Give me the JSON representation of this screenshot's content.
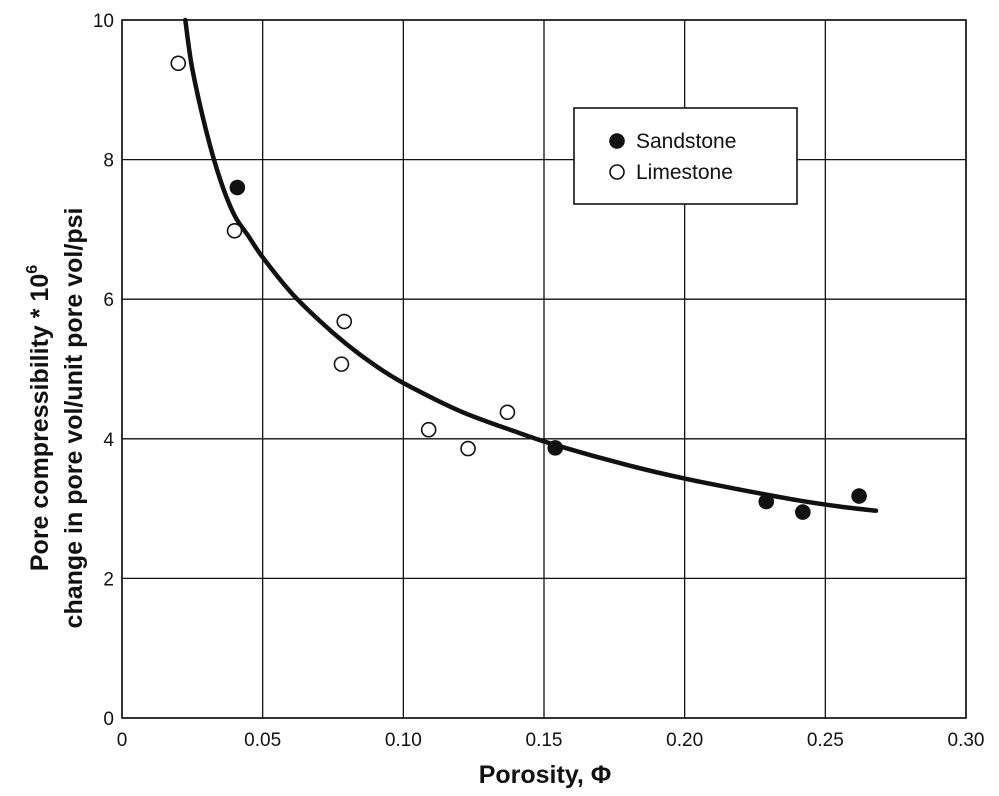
{
  "chart_data": {
    "type": "scatter",
    "xlabel": "Porosity, Φ",
    "ylabel_line1": "Pore compressibility * 10",
    "ylabel_sup": "6",
    "ylabel_line2": "change in pore vol/unit pore vol/psi",
    "xlim": [
      0,
      0.3
    ],
    "ylim": [
      0,
      10
    ],
    "x_ticks": [
      0,
      0.05,
      0.1,
      0.15,
      0.2,
      0.25,
      0.3
    ],
    "x_tick_labels": [
      "0",
      "0.05",
      "0.10",
      "0.15",
      "0.20",
      "0.25",
      "0.30"
    ],
    "y_ticks": [
      0,
      2,
      4,
      6,
      8,
      10
    ],
    "y_tick_labels": [
      "0",
      "2",
      "4",
      "6",
      "8",
      "10"
    ],
    "grid": true,
    "legend_position": "top-right",
    "series": [
      {
        "name": "Sandstone",
        "marker": "filled-circle",
        "color": "#111111",
        "x": [
          0.041,
          0.154,
          0.229,
          0.242,
          0.262
        ],
        "y": [
          7.6,
          3.87,
          3.1,
          2.95,
          3.18
        ]
      },
      {
        "name": "Limestone",
        "marker": "open-circle",
        "color": "#111111",
        "x": [
          0.02,
          0.04,
          0.079,
          0.078,
          0.109,
          0.123,
          0.137
        ],
        "y": [
          9.38,
          6.98,
          5.68,
          5.07,
          4.13,
          3.86,
          4.38
        ]
      }
    ],
    "fit_curve": {
      "x": [
        0.0225,
        0.025,
        0.03,
        0.035,
        0.04,
        0.045,
        0.05,
        0.06,
        0.07,
        0.08,
        0.09,
        0.1,
        0.12,
        0.14,
        0.155,
        0.18,
        0.2,
        0.22,
        0.24,
        0.255,
        0.268
      ],
      "y": [
        10.0,
        9.3,
        8.4,
        7.7,
        7.2,
        6.9,
        6.6,
        6.1,
        5.7,
        5.35,
        5.05,
        4.8,
        4.4,
        4.1,
        3.9,
        3.62,
        3.43,
        3.27,
        3.12,
        3.03,
        2.97
      ]
    }
  }
}
